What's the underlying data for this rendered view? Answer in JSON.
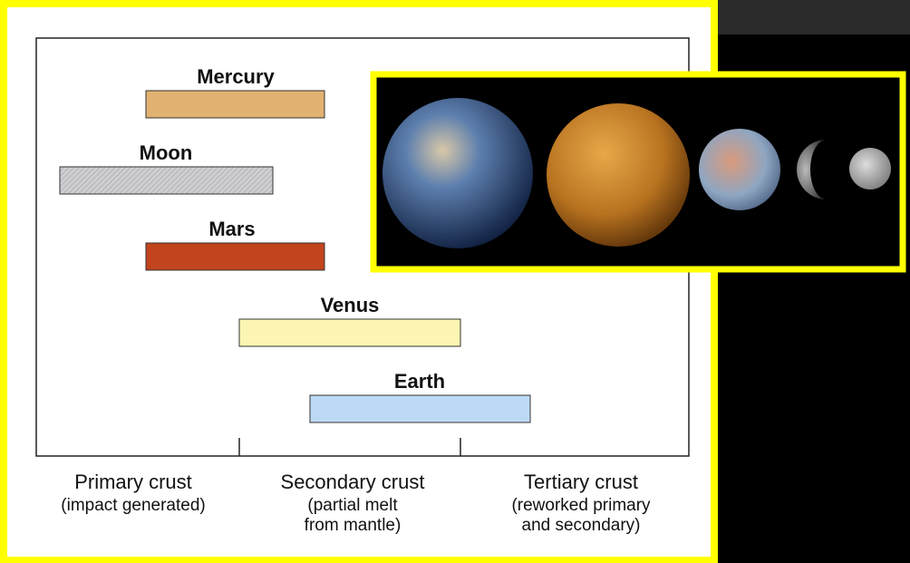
{
  "bars": [
    {
      "label": "Mercury"
    },
    {
      "label": "Moon"
    },
    {
      "label": "Mars"
    },
    {
      "label": "Venus"
    },
    {
      "label": "Earth"
    }
  ],
  "regions": [
    {
      "title": "Primary crust",
      "lines": [
        "(impact generated)"
      ]
    },
    {
      "title": "Secondary crust",
      "lines": [
        "(partial melt",
        "from mantle)"
      ]
    },
    {
      "title": "Tertiary crust",
      "lines": [
        "(reworked primary",
        "and secondary)"
      ]
    }
  ]
}
